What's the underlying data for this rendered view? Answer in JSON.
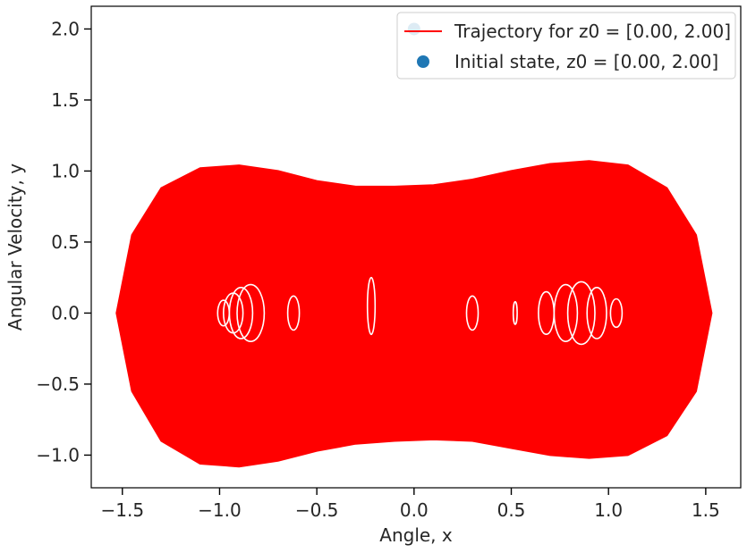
{
  "chart_data": {
    "type": "line",
    "xlabel": "Angle, x",
    "ylabel": "Angular Velocity, y",
    "xlim": [
      -1.66,
      1.68
    ],
    "ylim": [
      -1.23,
      2.16
    ],
    "xticks": [
      -1.5,
      -1.0,
      -0.5,
      0.0,
      0.5,
      1.0,
      1.5
    ],
    "xtick_labels": [
      "−1.5",
      "−1.0",
      "−0.5",
      "0.0",
      "0.5",
      "1.0",
      "1.5"
    ],
    "yticks": [
      -1.0,
      -0.5,
      0.0,
      0.5,
      1.0,
      1.5,
      2.0
    ],
    "ytick_labels": [
      "−1.0",
      "−0.5",
      "0.0",
      "0.5",
      "1.0",
      "1.5",
      "2.0"
    ],
    "grid": false,
    "legend_position": "top-right",
    "series": [
      {
        "name": "Trajectory for z0 = [0.00, 2.00]",
        "kind": "line",
        "color": "#ff0000",
        "envelope_upper": [
          {
            "x": -1.53,
            "y": 0.0
          },
          {
            "x": -1.45,
            "y": 0.55
          },
          {
            "x": -1.3,
            "y": 0.88
          },
          {
            "x": -1.1,
            "y": 1.02
          },
          {
            "x": -0.9,
            "y": 1.04
          },
          {
            "x": -0.7,
            "y": 1.0
          },
          {
            "x": -0.5,
            "y": 0.93
          },
          {
            "x": -0.3,
            "y": 0.89
          },
          {
            "x": -0.1,
            "y": 0.89
          },
          {
            "x": 0.1,
            "y": 0.9
          },
          {
            "x": 0.3,
            "y": 0.94
          },
          {
            "x": 0.5,
            "y": 1.0
          },
          {
            "x": 0.7,
            "y": 1.05
          },
          {
            "x": 0.9,
            "y": 1.07
          },
          {
            "x": 1.1,
            "y": 1.04
          },
          {
            "x": 1.3,
            "y": 0.88
          },
          {
            "x": 1.45,
            "y": 0.55
          },
          {
            "x": 1.53,
            "y": 0.0
          }
        ],
        "envelope_lower": [
          {
            "x": -1.53,
            "y": 0.0
          },
          {
            "x": -1.45,
            "y": -0.55
          },
          {
            "x": -1.3,
            "y": -0.9
          },
          {
            "x": -1.1,
            "y": -1.06
          },
          {
            "x": -0.9,
            "y": -1.08
          },
          {
            "x": -0.7,
            "y": -1.04
          },
          {
            "x": -0.5,
            "y": -0.97
          },
          {
            "x": -0.3,
            "y": -0.92
          },
          {
            "x": -0.1,
            "y": -0.9
          },
          {
            "x": 0.1,
            "y": -0.89
          },
          {
            "x": 0.3,
            "y": -0.9
          },
          {
            "x": 0.5,
            "y": -0.95
          },
          {
            "x": 0.7,
            "y": -1.0
          },
          {
            "x": 0.9,
            "y": -1.02
          },
          {
            "x": 1.1,
            "y": -1.0
          },
          {
            "x": 1.3,
            "y": -0.86
          },
          {
            "x": 1.45,
            "y": -0.55
          },
          {
            "x": 1.53,
            "y": 0.0
          }
        ]
      },
      {
        "name": "Initial state, z0 = [0.00, 2.00]",
        "kind": "scatter",
        "color": "#1f77b4",
        "points": [
          {
            "x": 0.0,
            "y": 2.0
          }
        ]
      }
    ],
    "legend": [
      {
        "label": "Trajectory for z0 = [0.00, 2.00]",
        "marker": "line",
        "color": "#ff0000"
      },
      {
        "label": "Initial state, z0 = [0.00, 2.00]",
        "marker": "dot",
        "color": "#1f77b4"
      }
    ]
  }
}
